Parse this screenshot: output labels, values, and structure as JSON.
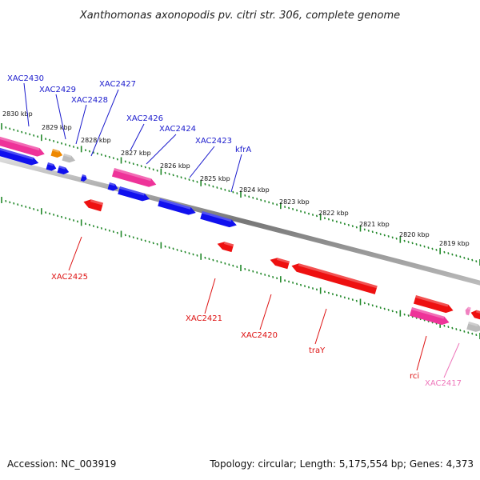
{
  "title": "Xanthomonas axonopodis pv. citri str. 306, complete genome",
  "footer": {
    "accession": "Accession: NC_003919",
    "topology": "Topology: circular; Length: 5,175,554 bp; Genes: 4,373"
  },
  "colors": {
    "forward_gene": "#1010ee",
    "reverse_gene": "#ee1010",
    "highlight_gene": "#ee3399",
    "pale_gene": "#f080c0",
    "orange_gene": "#ee8800",
    "grey_gene": "#bbbbbb",
    "ruler_ticks": "#22882a",
    "backbone": "#888888",
    "forward_label": "#1a1acc",
    "reverse_label": "#dd1111",
    "pale_label": "#ee77bb"
  },
  "ticks": [
    {
      "label": "2830 kbp"
    },
    {
      "label": "2829 kbp"
    },
    {
      "label": "2828 kbp"
    },
    {
      "label": "2827 kbp"
    },
    {
      "label": "2826 kbp"
    },
    {
      "label": "2825 kbp"
    },
    {
      "label": "2824 kbp"
    },
    {
      "label": "2823 kbp"
    },
    {
      "label": "2822 kbp"
    },
    {
      "label": "2821 kbp"
    },
    {
      "label": "2820 kbp"
    },
    {
      "label": "2819 kbp"
    }
  ],
  "gene_labels": [
    {
      "text": "XAC2430",
      "strand": "forward"
    },
    {
      "text": "XAC2429",
      "strand": "forward"
    },
    {
      "text": "XAC2428",
      "strand": "forward"
    },
    {
      "text": "XAC2427",
      "strand": "forward"
    },
    {
      "text": "XAC2426",
      "strand": "forward"
    },
    {
      "text": "XAC2424",
      "strand": "forward"
    },
    {
      "text": "XAC2423",
      "strand": "forward"
    },
    {
      "text": "kfrA",
      "strand": "forward"
    },
    {
      "text": "XAC2425",
      "strand": "reverse"
    },
    {
      "text": "XAC2421",
      "strand": "reverse"
    },
    {
      "text": "XAC2420",
      "strand": "reverse"
    },
    {
      "text": "traY",
      "strand": "reverse"
    },
    {
      "text": "rci",
      "strand": "reverse"
    },
    {
      "text": "XAC2417",
      "strand": "reverse"
    }
  ]
}
